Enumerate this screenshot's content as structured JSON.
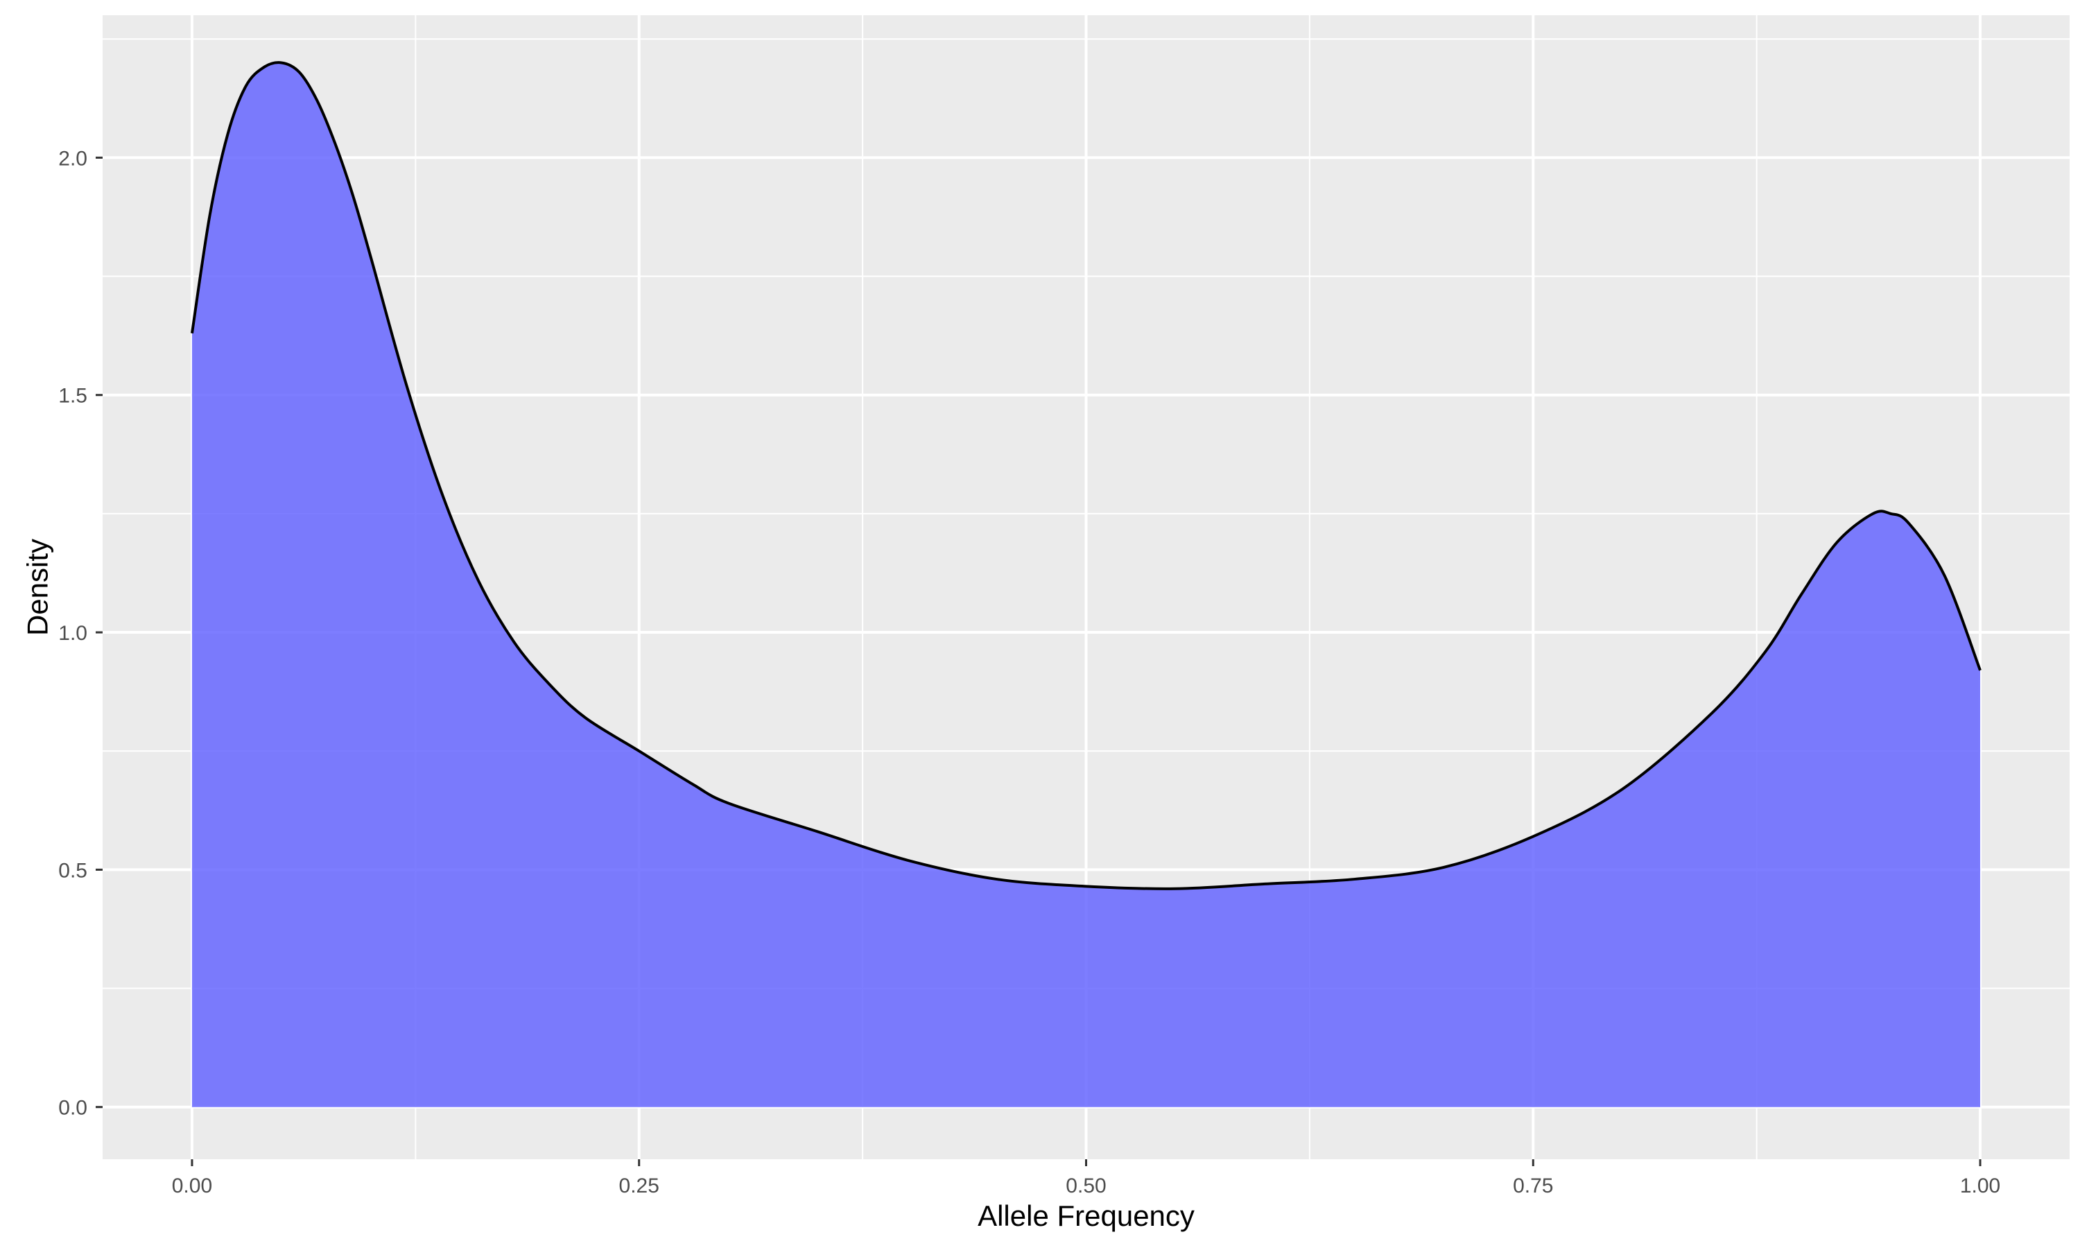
{
  "chart_data": {
    "type": "area",
    "title": "",
    "xlabel": "Allele Frequency",
    "ylabel": "Density",
    "xlim": [
      -0.05,
      1.05
    ],
    "ylim": [
      -0.11,
      2.3
    ],
    "x_ticks": [
      0.0,
      0.25,
      0.5,
      0.75,
      1.0
    ],
    "x_tick_labels": [
      "0.00",
      "0.25",
      "0.50",
      "0.75",
      "1.00"
    ],
    "x_minor_ticks": [
      0.125,
      0.375,
      0.625,
      0.875
    ],
    "y_ticks": [
      0.0,
      0.5,
      1.0,
      1.5,
      2.0
    ],
    "y_tick_labels": [
      "0.0",
      "0.5",
      "1.0",
      "1.5",
      "2.0"
    ],
    "y_minor_ticks": [
      0.25,
      0.75,
      1.25,
      1.75,
      2.25
    ],
    "grid": true,
    "legend": "none",
    "colors": {
      "fill": "#6666ff",
      "fill_opacity": 0.85,
      "line": "#000000",
      "panel": "#ebebeb",
      "grid": "#ffffff",
      "background": "#ffffff"
    },
    "series": [
      {
        "x": [
          0.0,
          0.01,
          0.02,
          0.03,
          0.04,
          0.05,
          0.06,
          0.07,
          0.08,
          0.09,
          0.1,
          0.12,
          0.14,
          0.16,
          0.18,
          0.2,
          0.22,
          0.25,
          0.28,
          0.3,
          0.35,
          0.4,
          0.45,
          0.5,
          0.55,
          0.6,
          0.65,
          0.7,
          0.75,
          0.8,
          0.85,
          0.88,
          0.9,
          0.92,
          0.94,
          0.95,
          0.96,
          0.98,
          1.0
        ],
        "y": [
          1.63,
          1.88,
          2.05,
          2.15,
          2.19,
          2.2,
          2.18,
          2.12,
          2.03,
          1.92,
          1.79,
          1.52,
          1.29,
          1.11,
          0.98,
          0.89,
          0.82,
          0.75,
          0.68,
          0.64,
          0.58,
          0.52,
          0.48,
          0.465,
          0.46,
          0.47,
          0.48,
          0.505,
          0.57,
          0.67,
          0.83,
          0.96,
          1.08,
          1.19,
          1.25,
          1.25,
          1.23,
          1.12,
          0.92
        ]
      }
    ]
  }
}
